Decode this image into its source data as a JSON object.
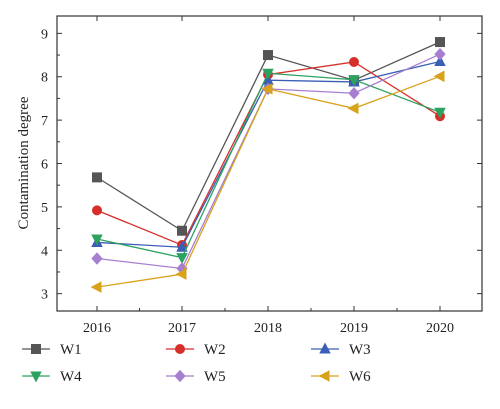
{
  "chart_data": {
    "type": "line",
    "title": "",
    "xlabel": "",
    "ylabel": "Contamination degree",
    "x": [
      "2016",
      "2017",
      "2018",
      "2019",
      "2020"
    ],
    "ylim": [
      2.6,
      9.4
    ],
    "yticks": [
      3,
      4,
      5,
      6,
      7,
      8,
      9
    ],
    "grid": false,
    "legend_position": "bottom",
    "series": [
      {
        "name": "W1",
        "color": "#555555",
        "marker": "square",
        "values": [
          5.68,
          4.45,
          8.5,
          7.92,
          8.8
        ]
      },
      {
        "name": "W2",
        "color": "#d62f2a",
        "marker": "circle",
        "values": [
          4.92,
          4.12,
          8.05,
          8.34,
          7.09
        ]
      },
      {
        "name": "W3",
        "color": "#3a5fb4",
        "marker": "triangle-up",
        "values": [
          4.18,
          4.07,
          7.92,
          7.88,
          8.35
        ]
      },
      {
        "name": "W4",
        "color": "#2ca25f",
        "marker": "triangle-down",
        "values": [
          4.26,
          3.83,
          8.08,
          7.93,
          7.18
        ]
      },
      {
        "name": "W5",
        "color": "#a67fd1",
        "marker": "diamond",
        "values": [
          3.81,
          3.58,
          7.72,
          7.62,
          8.52
        ]
      },
      {
        "name": "W6",
        "color": "#d9a21b",
        "marker": "triangle-left",
        "values": [
          3.15,
          3.45,
          7.72,
          7.27,
          8.01
        ]
      }
    ]
  }
}
